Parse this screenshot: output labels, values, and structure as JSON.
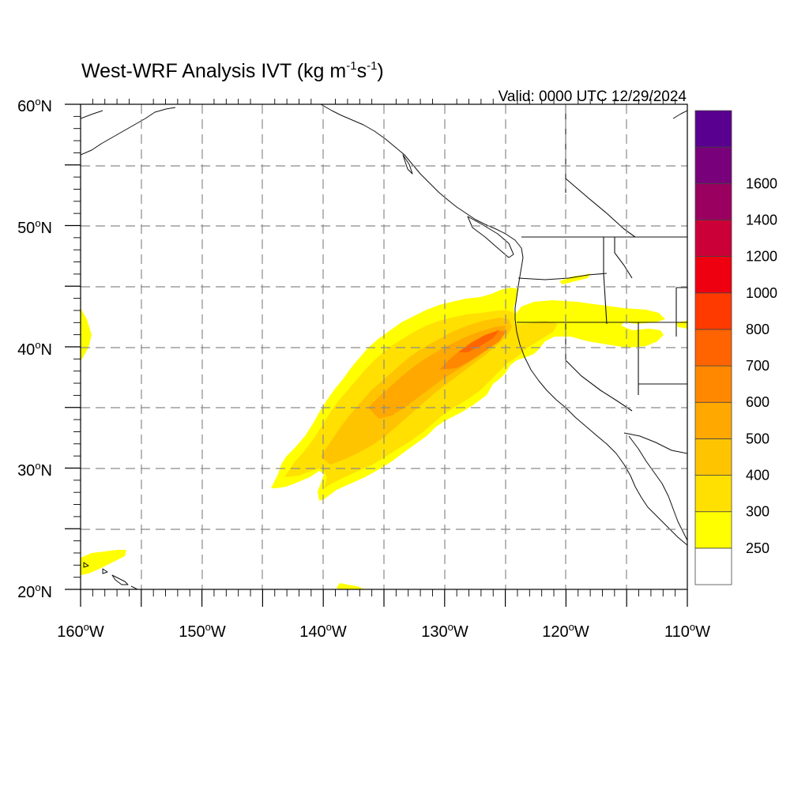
{
  "title_main": "West-WRF Analysis IVT (kg m",
  "title_exp1": "-1",
  "title_mid": "s",
  "title_exp2": "-1",
  "title_end": ")",
  "valid": "Valid: 0000 UTC 12/29/2024",
  "lat_labels": [
    {
      "num": "60",
      "deg": "o",
      "hem": "N"
    },
    {
      "num": "50",
      "deg": "o",
      "hem": "N"
    },
    {
      "num": "40",
      "deg": "o",
      "hem": "N"
    },
    {
      "num": "30",
      "deg": "o",
      "hem": "N"
    },
    {
      "num": "20",
      "deg": "o",
      "hem": "N"
    }
  ],
  "lon_labels": [
    {
      "num": "160",
      "deg": "o",
      "hem": "W"
    },
    {
      "num": "150",
      "deg": "o",
      "hem": "W"
    },
    {
      "num": "140",
      "deg": "o",
      "hem": "W"
    },
    {
      "num": "130",
      "deg": "o",
      "hem": "W"
    },
    {
      "num": "120",
      "deg": "o",
      "hem": "W"
    },
    {
      "num": "110",
      "deg": "o",
      "hem": "W"
    }
  ],
  "colorbar": {
    "colors": [
      "#ffffff",
      "#ffff00",
      "#ffe000",
      "#ffc400",
      "#ffa800",
      "#ff8800",
      "#ff6400",
      "#ff3a00",
      "#ee0010",
      "#cc0038",
      "#990060",
      "#78007a",
      "#5a0090"
    ],
    "labels": [
      "250",
      "300",
      "400",
      "500",
      "600",
      "700",
      "800",
      "1000",
      "1200",
      "1400",
      "1600"
    ]
  },
  "ivt_colors": {
    "c250": "#ffff00",
    "c300": "#ffe000",
    "c400": "#ffc400",
    "c500": "#ffa800",
    "c600": "#ff8800",
    "c700": "#ff6400"
  }
}
